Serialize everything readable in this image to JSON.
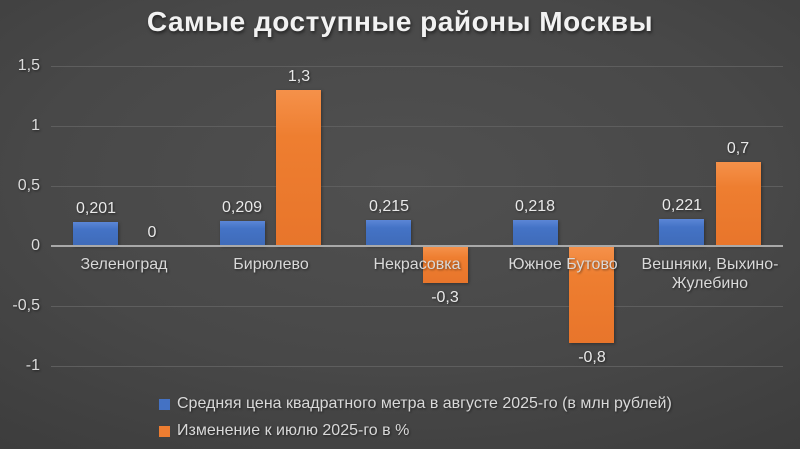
{
  "title": "Самые доступные районы Москвы",
  "chart_data": {
    "type": "bar",
    "title": "Самые доступные районы Москвы",
    "categories": [
      "Зеленоград",
      "Бирюлево",
      "Некрасовка",
      "Южное Бутово",
      "Вешняки, Выхино-Жулебино"
    ],
    "series": [
      {
        "name": "Средняя цена квадратного метра в августе 2025-го (в млн рублей)",
        "color": "#4472C4",
        "values": [
          0.201,
          0.209,
          0.215,
          0.218,
          0.221
        ],
        "labels": [
          "0,201",
          "0,209",
          "0,215",
          "0,218",
          "0,221"
        ]
      },
      {
        "name": "Изменение к июлю 2025-го в %",
        "color": "#ED7D31",
        "values": [
          0,
          1.3,
          -0.3,
          -0.8,
          0.7
        ],
        "labels": [
          "0",
          "1,3",
          "-0,3",
          "-0,8",
          "0,7"
        ]
      }
    ],
    "yticks": [
      1.5,
      1,
      0.5,
      0,
      -0.5,
      -1
    ],
    "ytick_labels": [
      "1,5",
      "1",
      "0,5",
      "0",
      "-0,5",
      "-1"
    ],
    "ylim": [
      -1,
      1.5
    ],
    "grid": true,
    "legend_position": "bottom-left"
  }
}
